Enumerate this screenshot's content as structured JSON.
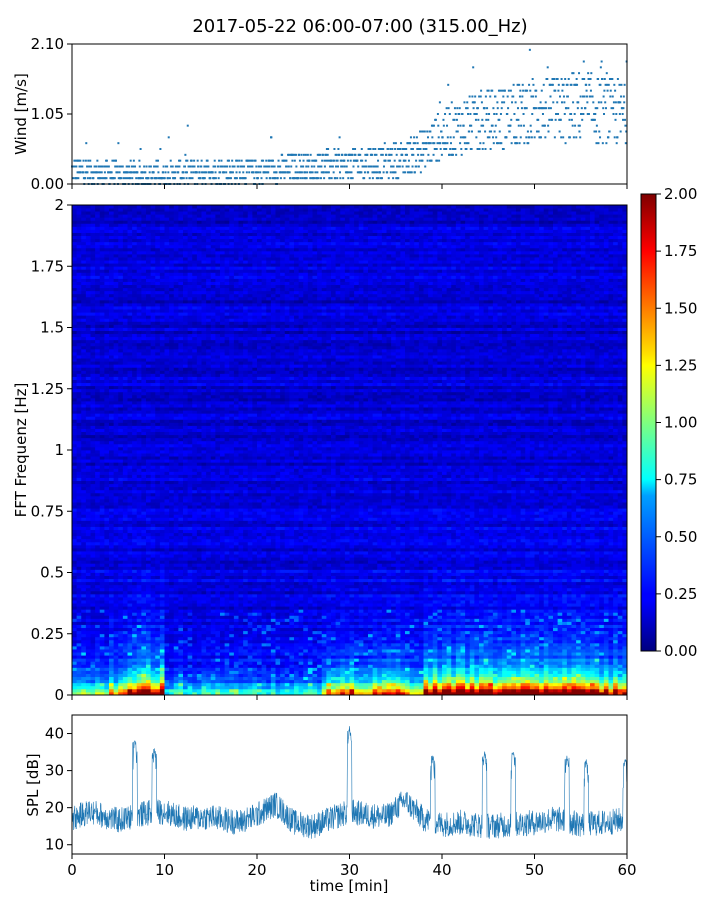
{
  "title": "2017-05-22 06:00-07:00 (315.00_Hz)",
  "chart_data": [
    {
      "id": "wind",
      "type": "scatter",
      "ylabel": "Wind [m/s]",
      "xlim": [
        0,
        60
      ],
      "ylim": [
        0,
        2.1
      ],
      "yticks": [
        0,
        1.05,
        2.1
      ],
      "ytick_labels": [
        "0.00",
        "1.05",
        "2.10"
      ],
      "marker_color": "#1f77b4",
      "trend": {
        "x": [
          0,
          5,
          10,
          15,
          20,
          25,
          30,
          35,
          38,
          40,
          42,
          45,
          50,
          55,
          60
        ],
        "y": [
          0.2,
          0.15,
          0.15,
          0.2,
          0.2,
          0.25,
          0.3,
          0.35,
          0.5,
          0.75,
          0.85,
          0.95,
          1.1,
          1.15,
          1.05
        ]
      }
    },
    {
      "id": "spectrogram",
      "type": "heatmap",
      "ylabel": "FFT Frequenz [Hz]",
      "xlim": [
        0,
        60
      ],
      "ylim": [
        0,
        2
      ],
      "yticks": [
        0,
        0.25,
        0.5,
        0.75,
        1,
        1.25,
        1.5,
        1.75,
        2
      ],
      "ytick_labels": [
        "0",
        "0.25",
        "0.5",
        "0.75",
        "1",
        "1.25",
        "1.5",
        "1.75",
        "2"
      ],
      "colormap": "jet",
      "colorbar": {
        "range": [
          0,
          2
        ],
        "ticks": [
          0,
          0.25,
          0.5,
          0.75,
          1,
          1.25,
          1.5,
          1.75,
          2
        ],
        "tick_labels": [
          "0.00",
          "0.25",
          "0.50",
          "0.75",
          "1.00",
          "1.25",
          "1.50",
          "1.75",
          "2.00"
        ]
      },
      "low_frequency_intensity": {
        "segments_min": [
          [
            0,
            4
          ],
          [
            4,
            6
          ],
          [
            6,
            10
          ],
          [
            10,
            27
          ],
          [
            27,
            38
          ],
          [
            38,
            44
          ],
          [
            44,
            50
          ],
          [
            50,
            53
          ],
          [
            53,
            56
          ],
          [
            56,
            60
          ]
        ],
        "values": [
          0.9,
          1.2,
          1.9,
          0.6,
          1.3,
          2.0,
          1.9,
          2.0,
          1.9,
          1.6
        ]
      }
    },
    {
      "id": "spl",
      "type": "line",
      "xlabel": "time [min]",
      "ylabel": "SPL [dB]",
      "xlim": [
        0,
        60
      ],
      "ylim": [
        7.5,
        45
      ],
      "xticks": [
        0,
        10,
        20,
        30,
        40,
        50,
        60
      ],
      "xtick_labels": [
        "0",
        "10",
        "20",
        "30",
        "40",
        "50",
        "60"
      ],
      "yticks": [
        10,
        20,
        30,
        40
      ],
      "ytick_labels": [
        "10",
        "20",
        "30",
        "40"
      ],
      "line_color": "#1f77b4",
      "baseline": {
        "x": [
          0,
          2,
          5,
          8,
          10,
          12,
          15,
          18,
          20,
          22,
          24,
          26,
          28,
          30,
          32,
          34,
          36,
          38,
          40,
          42,
          45,
          48,
          50,
          52,
          55,
          58,
          60
        ],
        "y": [
          17,
          19,
          16.5,
          18.5,
          19,
          17,
          17.5,
          16,
          18,
          21,
          16,
          15,
          17,
          19,
          18,
          17.5,
          22,
          17,
          15.5,
          16,
          15,
          15.5,
          16,
          17,
          15.5,
          16,
          17
        ]
      },
      "spikes": [
        {
          "x": 6.8,
          "y": 38
        },
        {
          "x": 8.9,
          "y": 36
        },
        {
          "x": 30.0,
          "y": 42
        },
        {
          "x": 39.0,
          "y": 34
        },
        {
          "x": 44.6,
          "y": 35
        },
        {
          "x": 47.7,
          "y": 35
        },
        {
          "x": 53.5,
          "y": 34
        },
        {
          "x": 55.6,
          "y": 33
        },
        {
          "x": 59.8,
          "y": 33
        }
      ]
    }
  ]
}
